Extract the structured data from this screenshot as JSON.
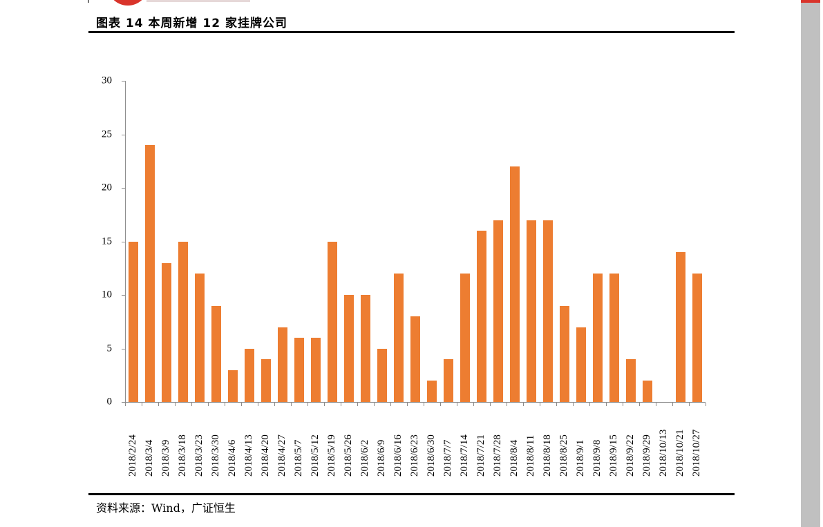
{
  "header": {
    "title": "图表 14 本周新增 12 家挂牌公司"
  },
  "footer": {
    "source": "资料来源：Wind，广证恒生"
  },
  "colors": {
    "bar": "#ed7d31",
    "axis": "#8c8c8c",
    "accent": "#d9342b",
    "scrollbar": "#c0c0c0"
  },
  "chart_data": {
    "type": "bar",
    "title": "图表 14 本周新增 12 家挂牌公司",
    "xlabel": "",
    "ylabel": "",
    "ylim": [
      0,
      30
    ],
    "yticks": [
      0,
      5,
      10,
      15,
      20,
      25,
      30
    ],
    "grid": false,
    "legend": null,
    "categories": [
      "2018/2/24",
      "2018/3/4",
      "2018/3/9",
      "2018/3/18",
      "2018/3/23",
      "2018/3/30",
      "2018/4/6",
      "2018/4/13",
      "2018/4/20",
      "2018/4/27",
      "2018/5/7",
      "2018/5/12",
      "2018/5/19",
      "2018/5/26",
      "2018/6/2",
      "2018/6/9",
      "2018/6/16",
      "2018/6/23",
      "2018/6/30",
      "2018/7/7",
      "2018/7/14",
      "2018/7/21",
      "2018/7/28",
      "2018/8/4",
      "2018/8/11",
      "2018/8/18",
      "2018/8/25",
      "2018/9/1",
      "2018/9/8",
      "2018/9/15",
      "2018/9/22",
      "2018/9/29",
      "2018/10/13",
      "2018/10/21",
      "2018/10/27"
    ],
    "values": [
      15,
      24,
      13,
      15,
      12,
      9,
      3,
      5,
      4,
      7,
      6,
      6,
      15,
      10,
      10,
      5,
      12,
      8,
      2,
      4,
      12,
      16,
      17,
      22,
      17,
      17,
      9,
      7,
      12,
      12,
      4,
      2,
      0,
      14,
      12
    ]
  }
}
